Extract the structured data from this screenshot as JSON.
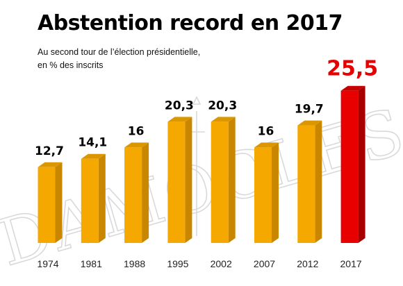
{
  "chart_data": {
    "type": "bar",
    "title": "Abstention record en 2017",
    "subtitle_lines": [
      "Au second tour de l’élection présidentielle,",
      "en % des inscrits"
    ],
    "categories": [
      "1974",
      "1981",
      "1988",
      "1995",
      "2002",
      "2007",
      "2012",
      "2017"
    ],
    "value_labels": [
      "12,7",
      "14,1",
      "16",
      "20,3",
      "20,3",
      "16",
      "19,7",
      "25,5"
    ],
    "values": [
      12.7,
      14.1,
      16,
      20.3,
      20.3,
      16,
      19.7,
      25.5
    ],
    "ylim": [
      0,
      26
    ],
    "grid": false,
    "legend": "none",
    "highlight_index": 7,
    "colors": {
      "bar_front": "#f5a800",
      "bar_side": "#c98700",
      "bar_top": "#dc9600",
      "highlight_front": "#e80000",
      "highlight_side": "#a80000",
      "highlight_top": "#c40000",
      "highlight_label": "#e60000",
      "label": "#000000"
    },
    "watermark": "DAMOCLES"
  }
}
